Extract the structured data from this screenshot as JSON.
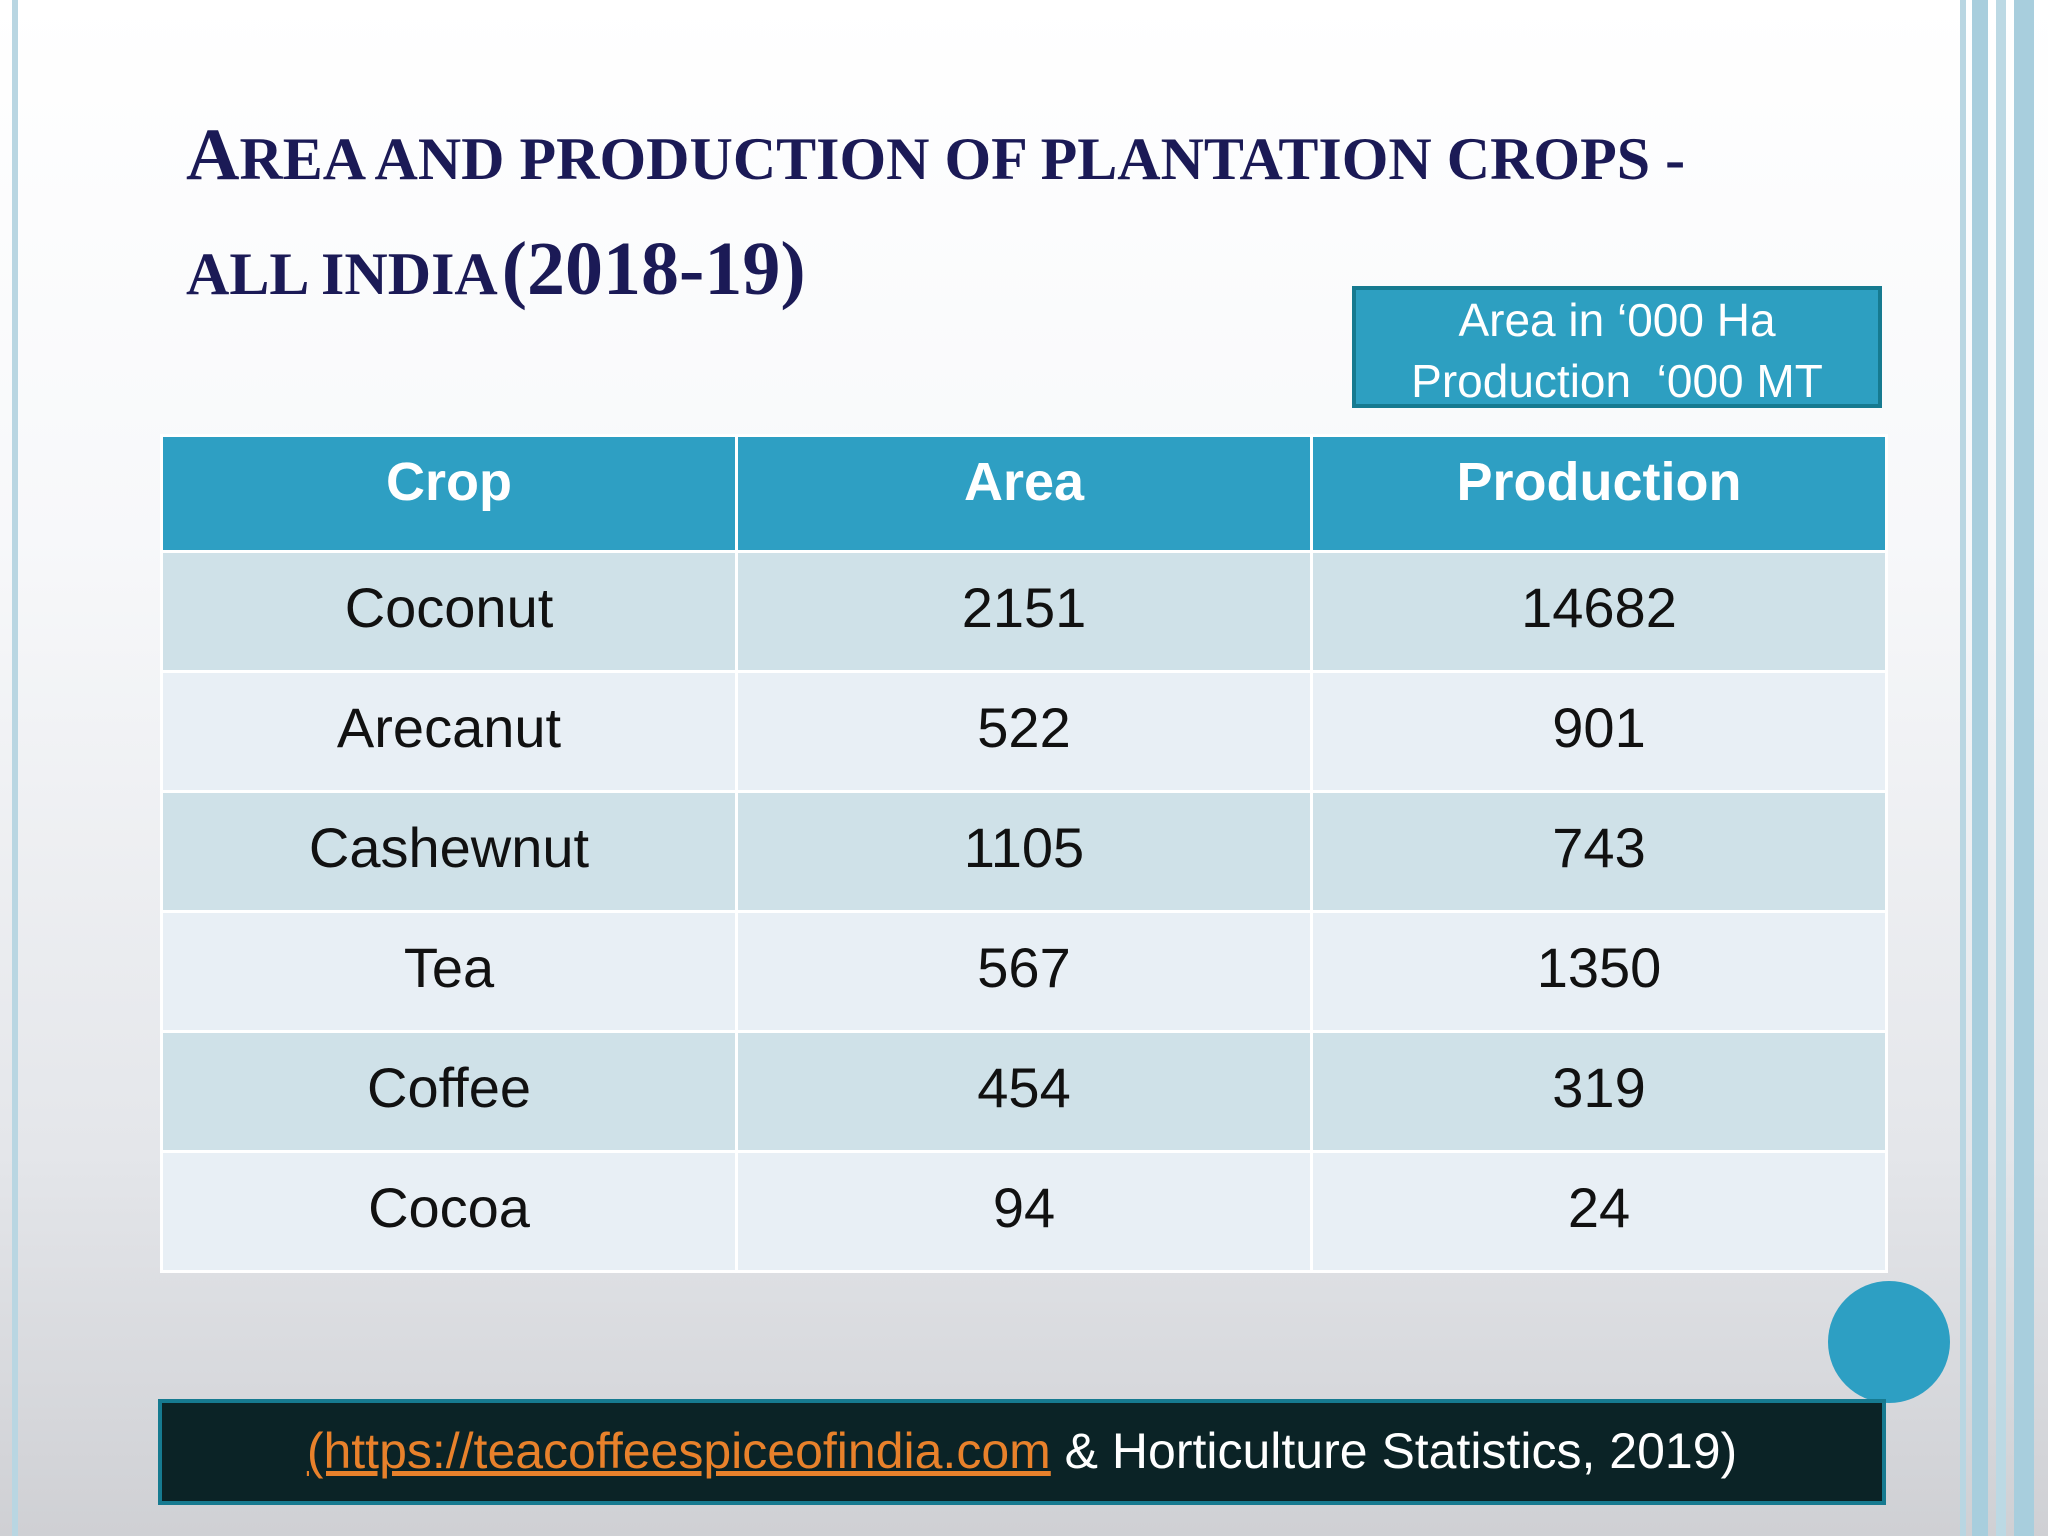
{
  "title": {
    "line1_cap": "A",
    "line1_rest": "REA AND PRODUCTION OF PLANTATION CROPS -",
    "line2_rest": "ALL INDIA",
    "line2_year": "(2018-19)"
  },
  "units": {
    "area": "Area in ‘000 Ha",
    "production": "Production  ‘000 MT"
  },
  "table": {
    "headers": [
      "Crop",
      "Area",
      "Production"
    ],
    "rows": [
      [
        "Coconut",
        "2151",
        "14682"
      ],
      [
        "Arecanut",
        "522",
        "901"
      ],
      [
        "Cashewnut",
        "1105",
        "743"
      ],
      [
        "Tea",
        "567",
        "1350"
      ],
      [
        "Coffee",
        "454",
        "319"
      ],
      [
        "Cocoa",
        "94",
        "24"
      ]
    ]
  },
  "source": {
    "link_text": "(https://teacoffeespiceofindia.com",
    "rest": " & Horticulture Statistics, 2019)"
  },
  "colors": {
    "title": "#1b1a56",
    "header_bg": "#2e9fc3",
    "row_odd": "#cfe1e8",
    "row_even": "#e8eff5",
    "source_bg": "#0b2326",
    "link": "#e8812b"
  }
}
